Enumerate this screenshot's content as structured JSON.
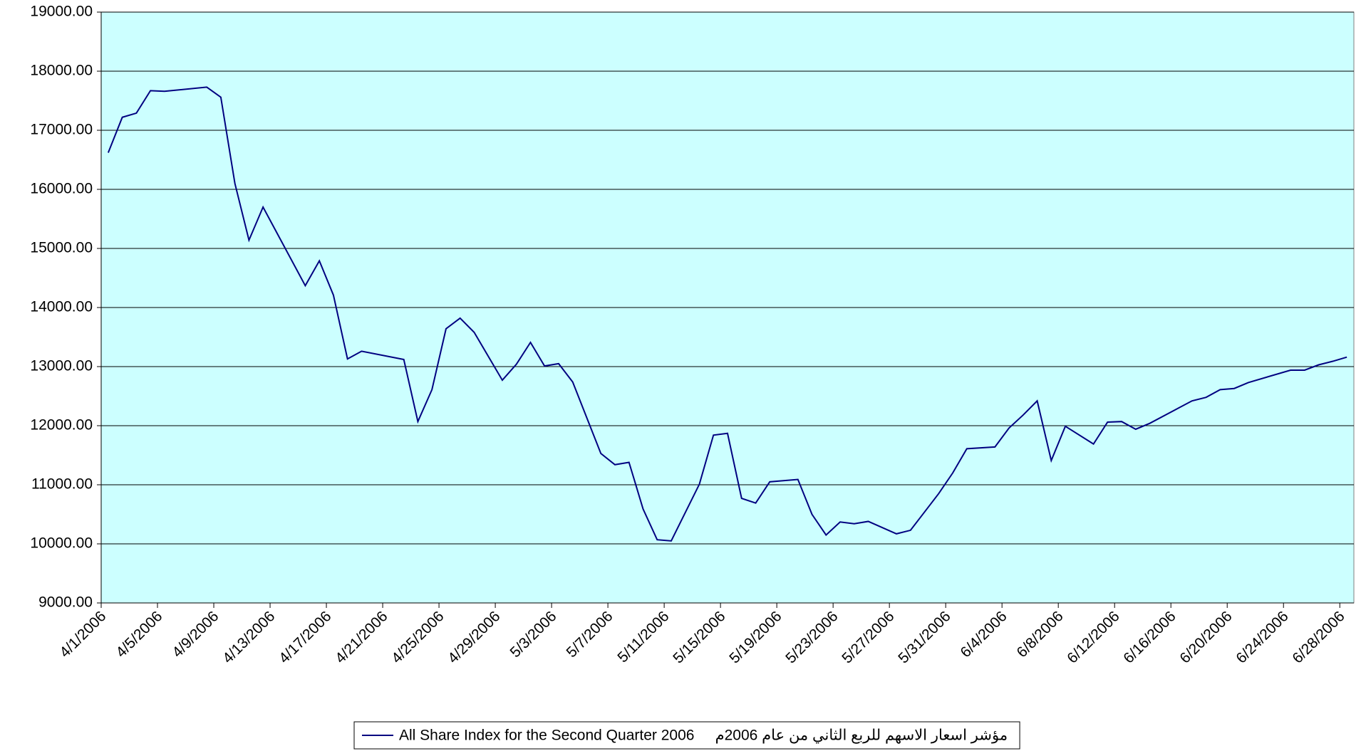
{
  "chart_data": {
    "type": "line",
    "x": [
      "4/1/2006",
      "4/2/2006",
      "4/3/2006",
      "4/4/2006",
      "4/5/2006",
      "4/8/2006",
      "4/9/2006",
      "4/10/2006",
      "4/11/2006",
      "4/12/2006",
      "4/15/2006",
      "4/16/2006",
      "4/17/2006",
      "4/18/2006",
      "4/19/2006",
      "4/22/2006",
      "4/23/2006",
      "4/24/2006",
      "4/25/2006",
      "4/26/2006",
      "4/27/2006",
      "4/29/2006",
      "4/30/2006",
      "5/1/2006",
      "5/2/2006",
      "5/3/2006",
      "5/4/2006",
      "5/6/2006",
      "5/7/2006",
      "5/8/2006",
      "5/9/2006",
      "5/10/2006",
      "5/11/2006",
      "5/13/2006",
      "5/14/2006",
      "5/15/2006",
      "5/16/2006",
      "5/17/2006",
      "5/18/2006",
      "5/20/2006",
      "5/21/2006",
      "5/22/2006",
      "5/23/2006",
      "5/24/2006",
      "5/25/2006",
      "5/27/2006",
      "5/28/2006",
      "5/29/2006",
      "5/30/2006",
      "5/31/2006",
      "6/1/2006",
      "6/3/2006",
      "6/4/2006",
      "6/5/2006",
      "6/6/2006",
      "6/7/2006",
      "6/8/2006",
      "6/10/2006",
      "6/11/2006",
      "6/12/2006",
      "6/13/2006",
      "6/14/2006",
      "6/17/2006",
      "6/18/2006",
      "6/19/2006",
      "6/20/2006",
      "6/21/2006",
      "6/24/2006",
      "6/25/2006",
      "6/26/2006",
      "6/27/2006",
      "6/28/2006"
    ],
    "series": [
      {
        "name": "All Share Index for the Second Quarter 2006     مؤشر اسعار الاسهم للربع الثاني من عام 2006م",
        "color": "#000080",
        "values": [
          16620,
          17220,
          17290,
          17670,
          17660,
          17730,
          17560,
          16100,
          15140,
          15700,
          14370,
          14790,
          14210,
          13130,
          13260,
          13120,
          12070,
          12610,
          13640,
          13820,
          13580,
          12770,
          13040,
          13410,
          13010,
          13050,
          12740,
          11530,
          11340,
          11380,
          10590,
          10070,
          10050,
          11010,
          11840,
          11870,
          10770,
          10690,
          11050,
          11090,
          10500,
          10150,
          10370,
          10340,
          10380,
          10170,
          10230,
          10540,
          10850,
          11200,
          11610,
          11640,
          11960,
          12180,
          12420,
          11410,
          11990,
          11690,
          12060,
          12070,
          11940,
          12040,
          12420,
          12480,
          12610,
          12630,
          12730,
          12940,
          12940,
          13030,
          13090,
          13160
        ]
      }
    ],
    "xlim": [
      "4/1/2006",
      "6/29/2006"
    ],
    "xticks": [
      "4/1/2006",
      "4/5/2006",
      "4/9/2006",
      "4/13/2006",
      "4/17/2006",
      "4/21/2006",
      "4/25/2006",
      "4/29/2006",
      "5/3/2006",
      "5/7/2006",
      "5/11/2006",
      "5/15/2006",
      "5/19/2006",
      "5/23/2006",
      "5/27/2006",
      "5/31/2006",
      "6/4/2006",
      "6/8/2006",
      "6/12/2006",
      "6/16/2006",
      "6/20/2006",
      "6/24/2006",
      "6/28/2006"
    ],
    "ylim": [
      9000,
      19000
    ],
    "yticks": [
      {
        "value": 9000,
        "label": "9000.00"
      },
      {
        "value": 10000,
        "label": "10000.00"
      },
      {
        "value": 11000,
        "label": "11000.00"
      },
      {
        "value": 12000,
        "label": "12000.00"
      },
      {
        "value": 13000,
        "label": "13000.00"
      },
      {
        "value": 14000,
        "label": "14000.00"
      },
      {
        "value": 15000,
        "label": "15000.00"
      },
      {
        "value": 16000,
        "label": "16000.00"
      },
      {
        "value": 17000,
        "label": "17000.00"
      },
      {
        "value": 18000,
        "label": "18000.00"
      },
      {
        "value": 19000,
        "label": "19000.00"
      }
    ],
    "grid": true,
    "plot_background": "#ccffff",
    "legend": "bottom"
  }
}
